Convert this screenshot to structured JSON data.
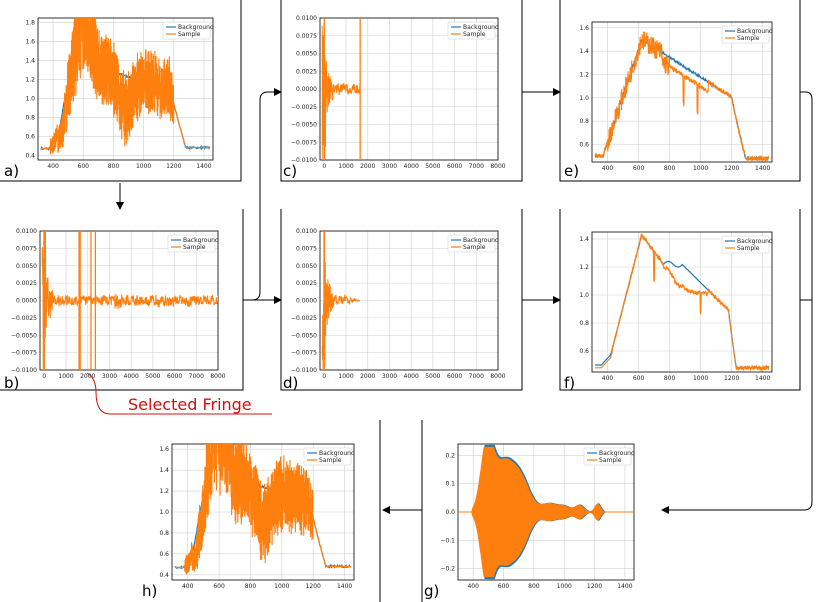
{
  "legend": {
    "background": "Background",
    "sample": "Sample"
  },
  "colors": {
    "background": "#1f77b4",
    "sample": "#ff7f0e",
    "annotation": "#d01010",
    "grid": "#d0d0d0"
  },
  "annotation": {
    "text": "Selected Fringe"
  },
  "panels": [
    {
      "id": "a",
      "label": "a)",
      "kind": "spectrum",
      "variant": "raw",
      "xticks": [
        "400",
        "600",
        "800",
        "1000",
        "1200",
        "1400"
      ],
      "xlim": [
        300,
        1460
      ],
      "yticks": [
        "0.4",
        "0.6",
        "0.8",
        "1.0",
        "1.2",
        "1.4",
        "1.6",
        "1.8"
      ],
      "ylim": [
        0.35,
        1.85
      ]
    },
    {
      "id": "b",
      "label": "b)",
      "kind": "ifg",
      "variant": "full",
      "xticks": [
        "0",
        "1000",
        "2000",
        "3000",
        "4000",
        "5000",
        "6000",
        "7000",
        "8000"
      ],
      "xlim": [
        -200,
        8000
      ],
      "yticks": [
        "−0.0100",
        "−0.0075",
        "−0.0050",
        "−0.0025",
        "0.0000",
        "0.0025",
        "0.0050",
        "0.0075",
        "0.0100"
      ],
      "ylim": [
        -0.01,
        0.01
      ]
    },
    {
      "id": "c",
      "label": "c)",
      "kind": "ifg",
      "variant": "cut",
      "xticks": [
        "0",
        "1000",
        "2000",
        "3000",
        "4000",
        "5000",
        "6000",
        "7000",
        "8000"
      ],
      "xlim": [
        -200,
        8000
      ],
      "yticks": [
        "−0.0100",
        "−0.0075",
        "−0.0050",
        "−0.0025",
        "0.0000",
        "0.0025",
        "0.0050",
        "0.0075",
        "0.0100"
      ],
      "ylim": [
        -0.01,
        0.01
      ]
    },
    {
      "id": "d",
      "label": "d)",
      "kind": "ifg",
      "variant": "apod",
      "xticks": [
        "0",
        "1000",
        "2000",
        "3000",
        "4000",
        "5000",
        "6000",
        "7000",
        "8000"
      ],
      "xlim": [
        -200,
        8000
      ],
      "yticks": [
        "−0.0100",
        "−0.0075",
        "−0.0050",
        "−0.0025",
        "0.0000",
        "0.0025",
        "0.0050",
        "0.0075",
        "0.0100"
      ],
      "ylim": [
        -0.01,
        0.01
      ]
    },
    {
      "id": "e",
      "label": "e)",
      "kind": "spectrum",
      "variant": "mid",
      "xticks": [
        "400",
        "600",
        "800",
        "1000",
        "1200",
        "1400"
      ],
      "xlim": [
        300,
        1460
      ],
      "yticks": [
        "0.6",
        "0.8",
        "1.0",
        "1.2",
        "1.4",
        "1.6"
      ],
      "ylim": [
        0.45,
        1.65
      ]
    },
    {
      "id": "f",
      "label": "f)",
      "kind": "spectrum",
      "variant": "smooth",
      "xticks": [
        "400",
        "600",
        "800",
        "1000",
        "1200",
        "1400"
      ],
      "xlim": [
        300,
        1460
      ],
      "yticks": [
        "0.6",
        "0.8",
        "1.0",
        "1.2",
        "1.4"
      ],
      "ylim": [
        0.45,
        1.45
      ]
    },
    {
      "id": "g",
      "label": "g)",
      "kind": "envelope",
      "variant": "env",
      "xticks": [
        "400",
        "600",
        "800",
        "1000",
        "1200",
        "1400"
      ],
      "xlim": [
        300,
        1460
      ],
      "yticks": [
        "−0.2",
        "−0.1",
        "0.0",
        "0.1",
        "0.2"
      ],
      "ylim": [
        -0.24,
        0.24
      ]
    },
    {
      "id": "h",
      "label": "h)",
      "kind": "spectrum",
      "variant": "raw",
      "xticks": [
        "400",
        "600",
        "800",
        "1000",
        "1200",
        "1400"
      ],
      "xlim": [
        300,
        1460
      ],
      "yticks": [
        "0.4",
        "0.6",
        "0.8",
        "1.0",
        "1.2",
        "1.4",
        "1.6"
      ],
      "ylim": [
        0.35,
        1.65
      ]
    }
  ]
}
